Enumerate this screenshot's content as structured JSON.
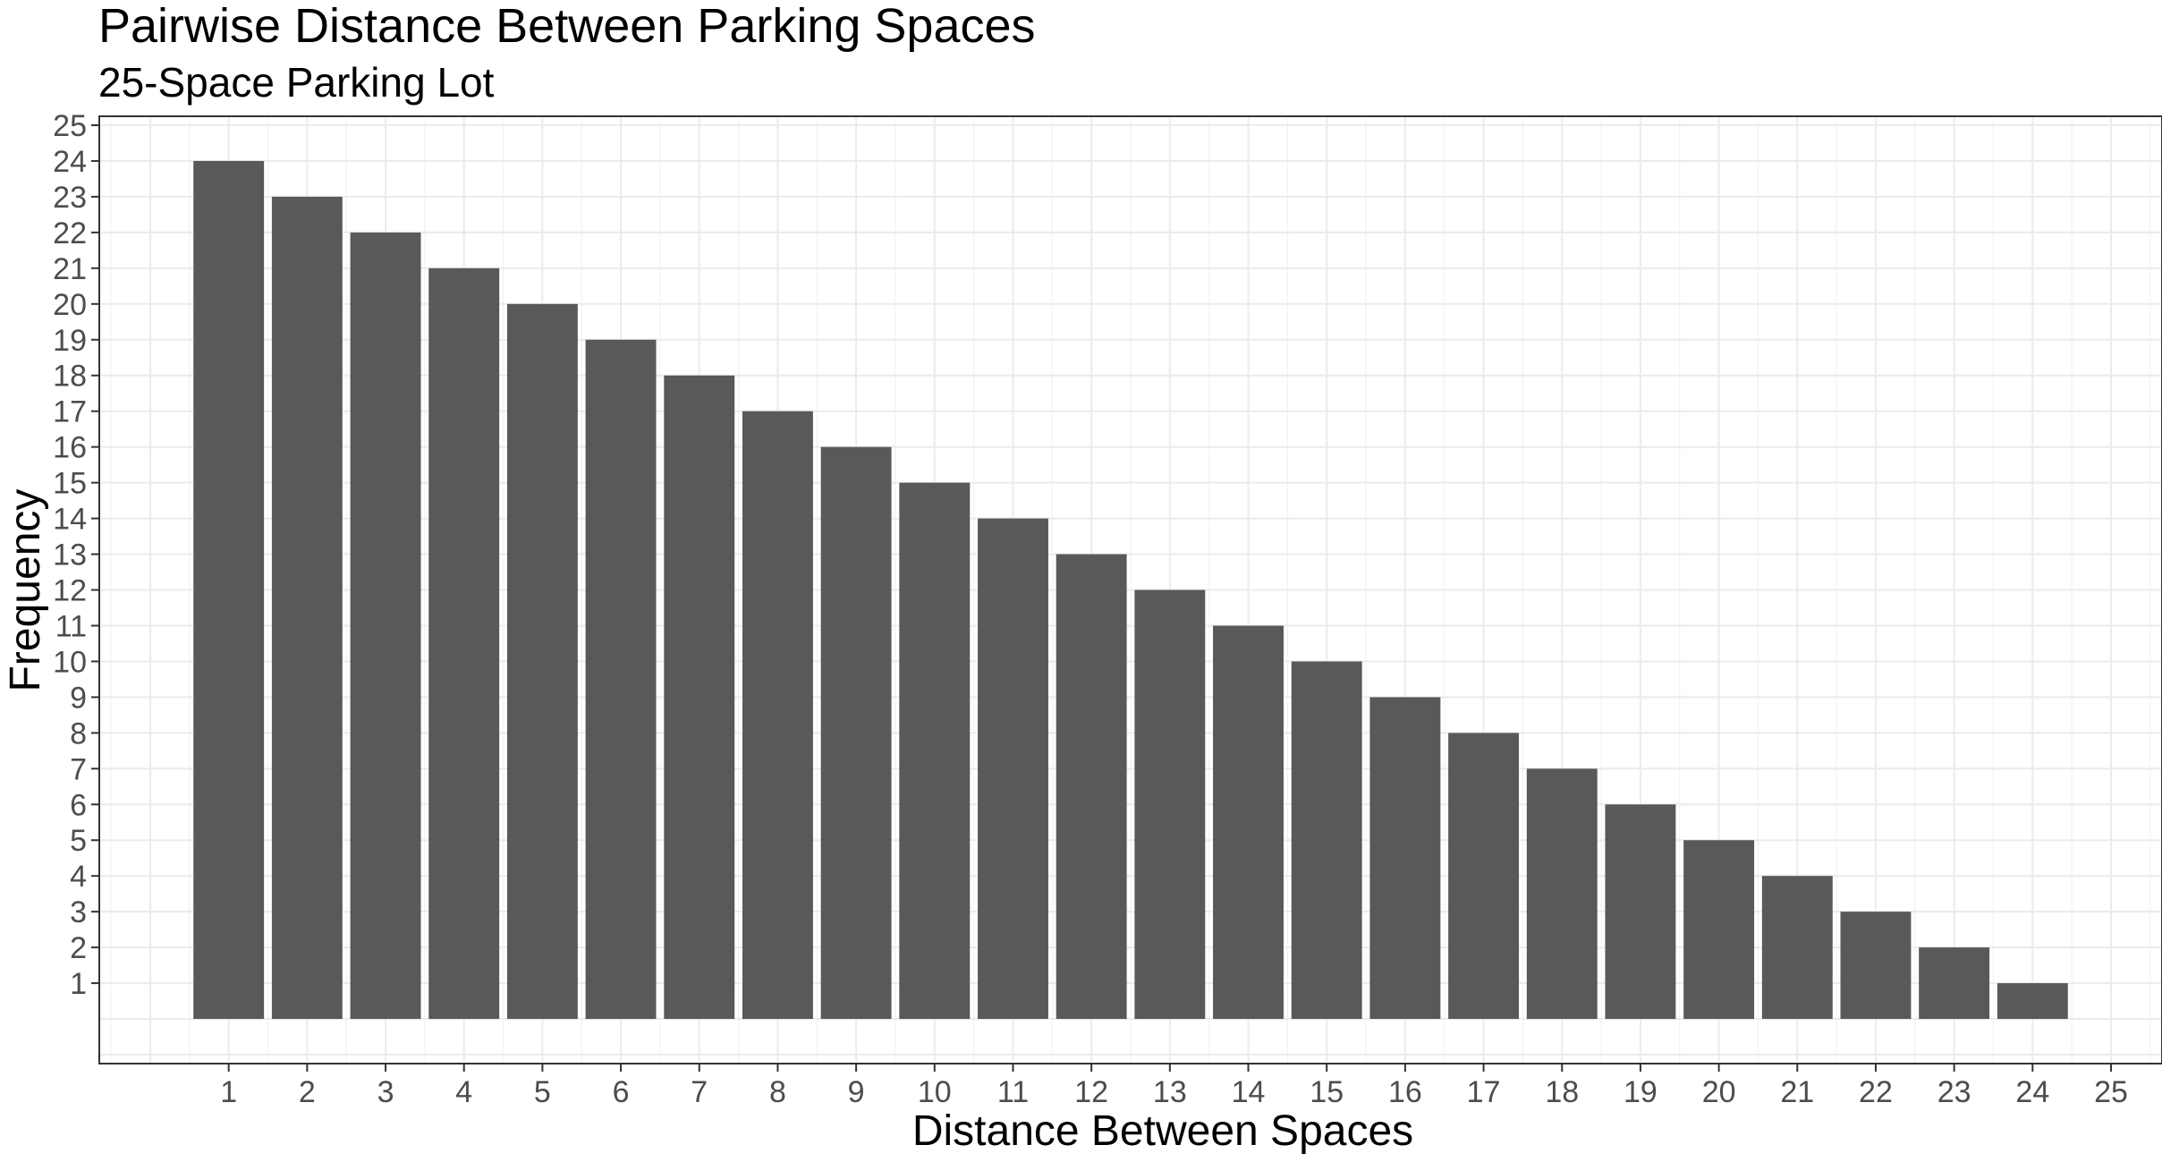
{
  "chart_data": {
    "type": "bar",
    "title": "Pairwise Distance Between Parking Spaces",
    "subtitle": "25-Space Parking Lot",
    "xlabel": "Distance Between Spaces",
    "ylabel": "Frequency",
    "x_ticks": [
      "1",
      "2",
      "3",
      "4",
      "5",
      "6",
      "7",
      "8",
      "9",
      "10",
      "11",
      "12",
      "13",
      "14",
      "15",
      "16",
      "17",
      "18",
      "19",
      "20",
      "21",
      "22",
      "23",
      "24",
      "25"
    ],
    "y_ticks": [
      "1",
      "2",
      "3",
      "4",
      "5",
      "6",
      "7",
      "8",
      "9",
      "10",
      "11",
      "12",
      "13",
      "14",
      "15",
      "16",
      "17",
      "18",
      "19",
      "20",
      "21",
      "22",
      "23",
      "24",
      "25"
    ],
    "categories": [
      1,
      2,
      3,
      4,
      5,
      6,
      7,
      8,
      9,
      10,
      11,
      12,
      13,
      14,
      15,
      16,
      17,
      18,
      19,
      20,
      21,
      22,
      23,
      24
    ],
    "values": [
      24,
      23,
      22,
      21,
      20,
      19,
      18,
      17,
      16,
      15,
      14,
      13,
      12,
      11,
      10,
      9,
      8,
      7,
      6,
      5,
      4,
      3,
      2,
      1
    ],
    "xlim": [
      -0.65,
      25.65
    ],
    "ylim": [
      -1.25,
      25.25
    ],
    "grid": true,
    "bar_color": "#595959",
    "grid_major_color": "#ebebeb",
    "grid_minor_color": "#f2f2f2",
    "panel_border_color": "#333333",
    "tick_color": "#333333"
  }
}
